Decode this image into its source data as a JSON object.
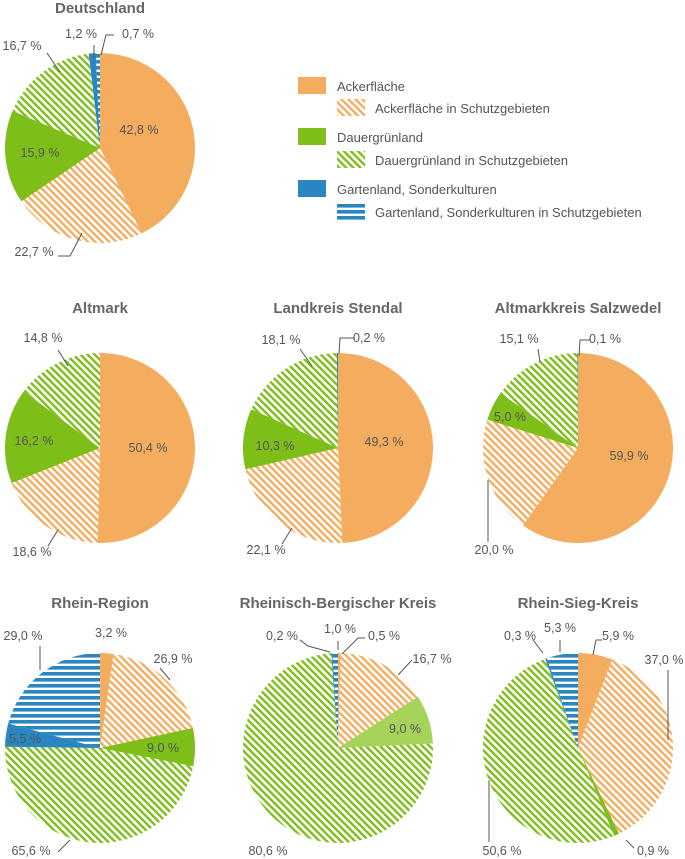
{
  "colors": {
    "acker": "#f4ad5f",
    "gruen": "#7ebe19",
    "garten": "#2a86c0",
    "gruen_light": "#a6d35a",
    "leader": "#555555",
    "title": "#666666"
  },
  "legend": [
    {
      "label": "Ackerfläche",
      "style": "solid",
      "color": "acker"
    },
    {
      "label": "Ackerfläche in Schutzgebieten",
      "style": "diag",
      "color": "acker"
    },
    {
      "label": "Dauergrünland",
      "style": "solid",
      "color": "gruen"
    },
    {
      "label": "Dauergrünland in Schutzgebieten",
      "style": "diag",
      "color": "gruen"
    },
    {
      "label": "Gartenland, Sonderkulturen",
      "style": "solid",
      "color": "garten"
    },
    {
      "label": "Gartenland, Sonderkulturen in Schutzgebieten",
      "style": "horiz",
      "color": "garten"
    }
  ],
  "chart_data": [
    {
      "type": "pie",
      "title": "Deutschland",
      "slices": [
        {
          "label": "42,8 %",
          "value": 42.8,
          "category": "Ackerfläche",
          "style": "solid",
          "color": "acker"
        },
        {
          "label": "22,7 %",
          "value": 22.7,
          "category": "Ackerfläche in Schutzgebieten",
          "style": "diag",
          "color": "acker"
        },
        {
          "label": "15,9 %",
          "value": 15.9,
          "category": "Dauergrünland",
          "style": "solid",
          "color": "gruen"
        },
        {
          "label": "16,7 %",
          "value": 16.7,
          "category": "Dauergrünland in Schutzgebieten",
          "style": "diag",
          "color": "gruen"
        },
        {
          "label": "1,2 %",
          "value": 1.2,
          "category": "Gartenland, Sonderkulturen",
          "style": "solid",
          "color": "garten"
        },
        {
          "label": "0,7 %",
          "value": 0.7,
          "category": "Gartenland, Sonderkulturen in Schutzgebieten",
          "style": "horiz",
          "color": "garten"
        }
      ]
    },
    {
      "type": "pie",
      "title": "Altmark",
      "slices": [
        {
          "label": "50,4 %",
          "value": 50.4,
          "category": "Ackerfläche",
          "style": "solid",
          "color": "acker"
        },
        {
          "label": "18,6 %",
          "value": 18.6,
          "category": "Ackerfläche in Schutzgebieten",
          "style": "diag",
          "color": "acker"
        },
        {
          "label": "16,2 %",
          "value": 16.2,
          "category": "Dauergrünland",
          "style": "solid",
          "color": "gruen"
        },
        {
          "label": "14,8 %",
          "value": 14.8,
          "category": "Dauergrünland in Schutzgebieten",
          "style": "diag",
          "color": "gruen"
        }
      ]
    },
    {
      "type": "pie",
      "title": "Landkreis Stendal",
      "slices": [
        {
          "label": "49,3 %",
          "value": 49.3,
          "category": "Ackerfläche",
          "style": "solid",
          "color": "acker"
        },
        {
          "label": "22,1 %",
          "value": 22.1,
          "category": "Ackerfläche in Schutzgebieten",
          "style": "diag",
          "color": "acker"
        },
        {
          "label": "10,3 %",
          "value": 10.3,
          "category": "Dauergrünland",
          "style": "solid",
          "color": "gruen"
        },
        {
          "label": "18,1 %",
          "value": 18.1,
          "category": "Dauergrünland in Schutzgebieten",
          "style": "diag",
          "color": "gruen"
        },
        {
          "label": "0,2 %",
          "value": 0.2,
          "category": "Gartenland, Sonderkulturen",
          "style": "solid",
          "color": "garten"
        }
      ]
    },
    {
      "type": "pie",
      "title": "Altmarkkreis Salzwedel",
      "slices": [
        {
          "label": "59,9 %",
          "value": 59.9,
          "category": "Ackerfläche",
          "style": "solid",
          "color": "acker"
        },
        {
          "label": "20,0 %",
          "value": 20.0,
          "category": "Ackerfläche in Schutzgebieten",
          "style": "diag",
          "color": "acker"
        },
        {
          "label": "5,0 %",
          "value": 5.0,
          "category": "Dauergrünland",
          "style": "solid",
          "color": "gruen"
        },
        {
          "label": "15,1 %",
          "value": 15.1,
          "category": "Dauergrünland in Schutzgebieten",
          "style": "diag",
          "color": "gruen"
        },
        {
          "label": "0,1 %",
          "value": 0.1,
          "category": "Gartenland, Sonderkulturen",
          "style": "solid",
          "color": "garten"
        }
      ]
    },
    {
      "type": "pie",
      "title": "Rhein-Region",
      "slices": [
        {
          "label": "3,2 %",
          "value": 3.2,
          "category": "Ackerfläche",
          "style": "solid",
          "color": "acker"
        },
        {
          "label": "26,9 %",
          "value": 26.9,
          "category": "Ackerfläche in Schutzgebieten",
          "style": "diag",
          "color": "acker"
        },
        {
          "label": "9,0 %",
          "value": 9.0,
          "category": "Dauergrünland",
          "style": "solid",
          "color": "gruen"
        },
        {
          "label": "65,6 %",
          "value": 65.6,
          "category": "Dauergrünland in Schutzgebieten",
          "style": "diag",
          "color": "gruen"
        },
        {
          "label": "5,5 %",
          "value": 5.5,
          "category": "Gartenland, Sonderkulturen",
          "style": "solid",
          "color": "garten"
        },
        {
          "label": "29,0 %",
          "value": 29.0,
          "category": "Gartenland, Sonderkulturen in Schutzgebieten",
          "style": "horiz",
          "color": "garten"
        }
      ]
    },
    {
      "type": "pie",
      "title": "Rheinisch-Bergischer Kreis",
      "slices": [
        {
          "label": "0,5 %",
          "value": 0.5,
          "category": "Ackerfläche",
          "style": "solid",
          "color": "acker"
        },
        {
          "label": "16,7 %",
          "value": 16.7,
          "category": "Ackerfläche in Schutzgebieten",
          "style": "diag",
          "color": "acker"
        },
        {
          "label": "9,0 %",
          "value": 9.0,
          "category": "Dauergrünland",
          "style": "solid",
          "color": "gruen_light"
        },
        {
          "label": "80,6 %",
          "value": 80.6,
          "category": "Dauergrünland in Schutzgebieten",
          "style": "diag",
          "color": "gruen"
        },
        {
          "label": "0,2 %",
          "value": 0.2,
          "category": "Gartenland, Sonderkulturen",
          "style": "solid",
          "color": "garten"
        },
        {
          "label": "1,0 %",
          "value": 1.0,
          "category": "Gartenland, Sonderkulturen in Schutzgebieten",
          "style": "horiz",
          "color": "garten"
        }
      ]
    },
    {
      "type": "pie",
      "title": "Rhein-Sieg-Kreis",
      "slices": [
        {
          "label": "5,9 %",
          "value": 5.9,
          "category": "Ackerfläche",
          "style": "solid",
          "color": "acker"
        },
        {
          "label": "37,0 %",
          "value": 37.0,
          "category": "Ackerfläche in Schutzgebieten",
          "style": "diag",
          "color": "acker"
        },
        {
          "label": "0,9 %",
          "value": 0.9,
          "category": "Dauergrünland",
          "style": "solid",
          "color": "gruen"
        },
        {
          "label": "50,6 %",
          "value": 50.6,
          "category": "Dauergrünland in Schutzgebieten",
          "style": "diag",
          "color": "gruen"
        },
        {
          "label": "0,3 %",
          "value": 0.3,
          "category": "Gartenland, Sonderkulturen",
          "style": "solid",
          "color": "garten"
        },
        {
          "label": "5,3 %",
          "value": 5.3,
          "category": "Gartenland, Sonderkulturen in Schutzgebieten",
          "style": "horiz",
          "color": "garten"
        }
      ]
    }
  ]
}
